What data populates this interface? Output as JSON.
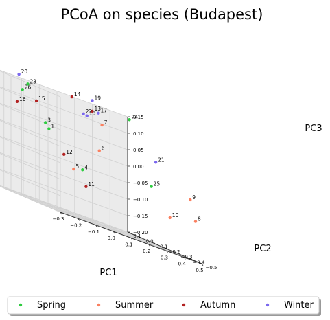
{
  "chart_data": {
    "type": "scatter",
    "title": "PCoA on species (Budapest)",
    "xlabel": "PC1",
    "ylabel": "PC2",
    "zlabel": "PC3",
    "xlim": [
      -0.3,
      0.5
    ],
    "ylim": [
      -0.5,
      0.1
    ],
    "zlim": [
      -0.2,
      0.15
    ],
    "xticks": [
      "−0.3",
      "−0.2",
      "−0.1",
      "0.0",
      "0.1",
      "0.2",
      "0.3",
      "0.4",
      "0.5"
    ],
    "yticks": [
      "−0.5",
      "−0.4",
      "−0.3",
      "−0.2",
      "−0.1",
      "0.0",
      "0.1"
    ],
    "zticks": [
      "−0.20",
      "−0.15",
      "−0.10",
      "−0.05",
      "0.00",
      "0.05",
      "0.10",
      "0.15"
    ],
    "grid": true,
    "legend": "bottom",
    "series": [
      {
        "name": "Spring",
        "color": "#2ecc40",
        "points": [
          {
            "label": "1",
            "x": -0.05,
            "y": -0.05,
            "z": 0.03
          },
          {
            "label": "3",
            "x": -0.07,
            "y": -0.05,
            "z": 0.045
          },
          {
            "label": "4",
            "x": 0.07,
            "y": -0.15,
            "z": -0.055
          },
          {
            "label": "23",
            "x": -0.1,
            "y": 0.05,
            "z": 0.14
          },
          {
            "label": "24",
            "x": 0.3,
            "y": -0.2,
            "z": 0.15
          },
          {
            "label": "25",
            "x": 0.32,
            "y": -0.35,
            "z": -0.025
          },
          {
            "label": "26",
            "x": -0.2,
            "y": -0.05,
            "z": 0.12
          }
        ]
      },
      {
        "name": "Summer",
        "color": "#fa8060",
        "points": [
          {
            "label": "5",
            "x": -0.05,
            "y": -0.25,
            "z": -0.06
          },
          {
            "label": "6",
            "x": 0.2,
            "y": -0.1,
            "z": 0.02
          },
          {
            "label": "7",
            "x": 0.25,
            "y": -0.05,
            "z": 0.1
          },
          {
            "label": "8",
            "x": 0.5,
            "y": -0.45,
            "z": -0.08
          },
          {
            "label": "9",
            "x": 0.47,
            "y": -0.45,
            "z": -0.02
          },
          {
            "label": "10",
            "x": 0.46,
            "y": -0.3,
            "z": -0.1
          }
        ]
      },
      {
        "name": "Autumn",
        "color": "#b22222",
        "points": [
          {
            "label": "11",
            "x": 0.02,
            "y": -0.25,
            "z": -0.1
          },
          {
            "label": "12",
            "x": 0.0,
            "y": -0.1,
            "z": -0.03
          },
          {
            "label": "13",
            "x": 0.23,
            "y": 0.0,
            "z": 0.13
          },
          {
            "label": "14",
            "x": 0.15,
            "y": 0.05,
            "z": 0.15
          },
          {
            "label": "15",
            "x": -0.1,
            "y": -0.02,
            "z": 0.1
          },
          {
            "label": "16",
            "x": -0.3,
            "y": -0.15,
            "z": 0.08
          }
        ]
      },
      {
        "name": "Winter",
        "color": "#7b68ee",
        "points": [
          {
            "label": "17",
            "x": 0.3,
            "y": 0.05,
            "z": 0.13
          },
          {
            "label": "18",
            "x": 0.2,
            "y": 0.0,
            "z": 0.11
          },
          {
            "label": "19",
            "x": 0.3,
            "y": 0.1,
            "z": 0.16
          },
          {
            "label": "20",
            "x": -0.15,
            "y": 0.05,
            "z": 0.16
          },
          {
            "label": "21",
            "x": 0.45,
            "y": -0.2,
            "z": 0.05
          },
          {
            "label": "22",
            "x": 0.25,
            "y": 0.1,
            "z": 0.11
          }
        ]
      }
    ]
  }
}
